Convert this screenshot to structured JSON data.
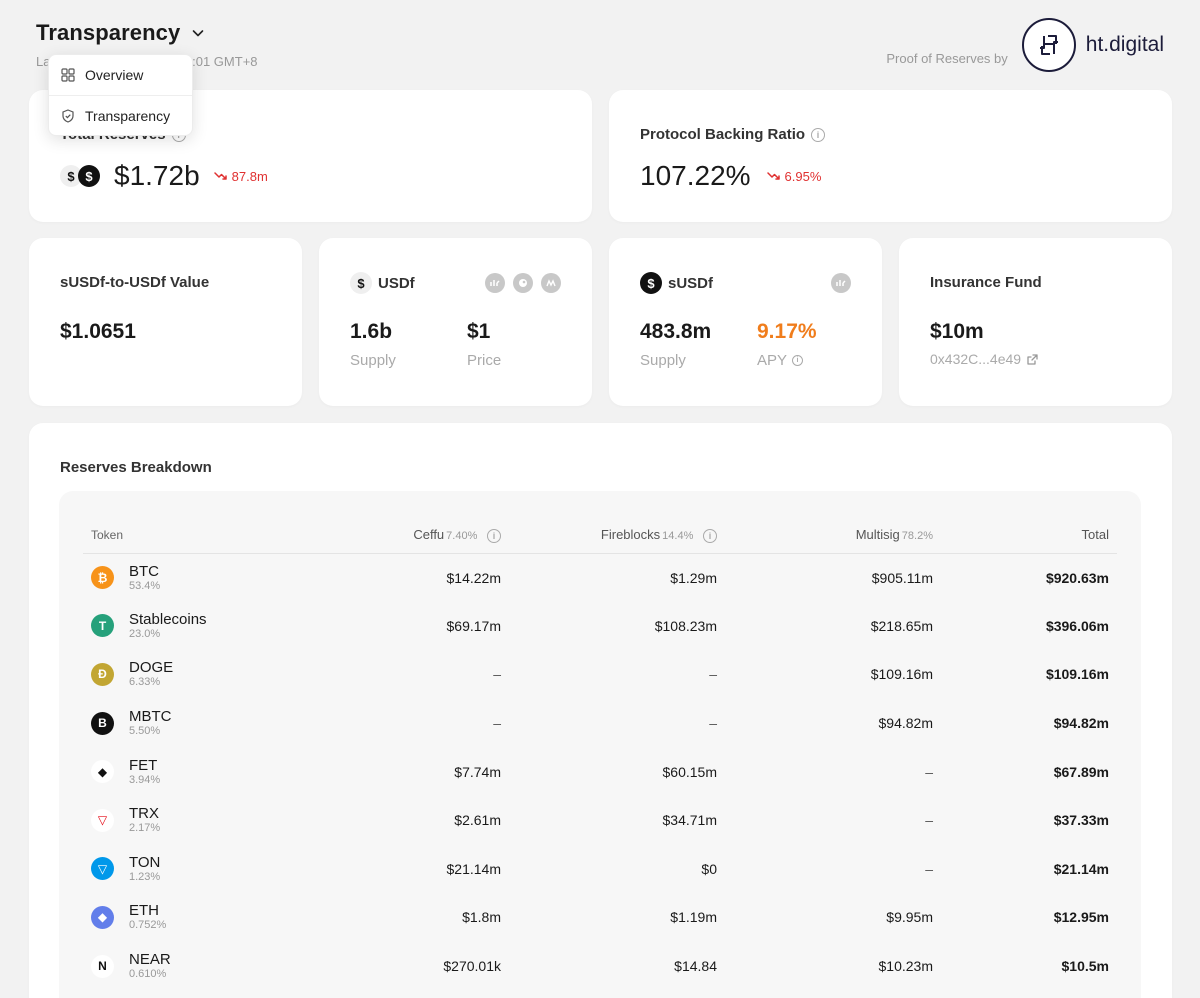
{
  "header": {
    "title": "Transparency",
    "updated": "Last updated: Apr 25 20:03:01 GMT+8",
    "proof_label": "Proof of Reserves by",
    "brand": "ht.digital"
  },
  "dropdown": {
    "items": [
      {
        "label": "Overview",
        "icon": "grid-icon"
      },
      {
        "label": "Transparency",
        "icon": "shield-icon"
      }
    ]
  },
  "total_reserves": {
    "label": "Total Reserves",
    "value": "$1.72b",
    "delta": "87.8m",
    "delta_color": "#e03131"
  },
  "backing_ratio": {
    "label": "Protocol Backing Ratio",
    "value": "107.22%",
    "delta": "6.95%"
  },
  "susdf_value": {
    "label": "sUSDf-to-USDf Value",
    "value": "$1.0651"
  },
  "usdf": {
    "label": "USDf",
    "supply_value": "1.6b",
    "supply_label": "Supply",
    "price_value": "$1",
    "price_label": "Price"
  },
  "susdf": {
    "label": "sUSDf",
    "supply_value": "483.8m",
    "supply_label": "Supply",
    "apy_value": "9.17%",
    "apy_label": "APY",
    "apy_color": "#f07d1c"
  },
  "insurance": {
    "label": "Insurance Fund",
    "value": "$10m",
    "address": "0x432C...4e49"
  },
  "breakdown": {
    "title": "Reserves Breakdown",
    "columns": {
      "token": "Token",
      "ceffu": "Ceffu",
      "ceffu_pct": "7.40%",
      "fireblocks": "Fireblocks",
      "fireblocks_pct": "14.4%",
      "multisig": "Multisig",
      "multisig_pct": "78.2%",
      "total": "Total"
    },
    "rows": [
      {
        "name": "BTC",
        "pct": "53.4%",
        "ceffu": "$14.22m",
        "fireblocks": "$1.29m",
        "multisig": "$905.11m",
        "total": "$920.63m",
        "color": "#f7931a",
        "glyph": "₿"
      },
      {
        "name": "Stablecoins",
        "pct": "23.0%",
        "ceffu": "$69.17m",
        "fireblocks": "$108.23m",
        "multisig": "$218.65m",
        "total": "$396.06m",
        "color": "#26a17b",
        "glyph": "T"
      },
      {
        "name": "DOGE",
        "pct": "6.33%",
        "ceffu": "–",
        "fireblocks": "–",
        "multisig": "$109.16m",
        "total": "$109.16m",
        "color": "#c2a633",
        "glyph": "Ð"
      },
      {
        "name": "MBTC",
        "pct": "5.50%",
        "ceffu": "–",
        "fireblocks": "–",
        "multisig": "$94.82m",
        "total": "$94.82m",
        "color": "#111111",
        "glyph": "B"
      },
      {
        "name": "FET",
        "pct": "3.94%",
        "ceffu": "$7.74m",
        "fireblocks": "$60.15m",
        "multisig": "–",
        "total": "$67.89m",
        "color": "#ffffff",
        "glyph": "◆"
      },
      {
        "name": "TRX",
        "pct": "2.17%",
        "ceffu": "$2.61m",
        "fireblocks": "$34.71m",
        "multisig": "–",
        "total": "$37.33m",
        "color": "#ffffff",
        "glyph": "▽"
      },
      {
        "name": "TON",
        "pct": "1.23%",
        "ceffu": "$21.14m",
        "fireblocks": "$0",
        "multisig": "–",
        "total": "$21.14m",
        "color": "#0098ea",
        "glyph": "▽"
      },
      {
        "name": "ETH",
        "pct": "0.752%",
        "ceffu": "$1.8m",
        "fireblocks": "$1.19m",
        "multisig": "$9.95m",
        "total": "$12.95m",
        "color": "#627eea",
        "glyph": "◆"
      },
      {
        "name": "NEAR",
        "pct": "0.610%",
        "ceffu": "$270.01k",
        "fireblocks": "$14.84",
        "multisig": "$10.23m",
        "total": "$10.5m",
        "color": "#ffffff",
        "glyph": "N"
      }
    ]
  }
}
